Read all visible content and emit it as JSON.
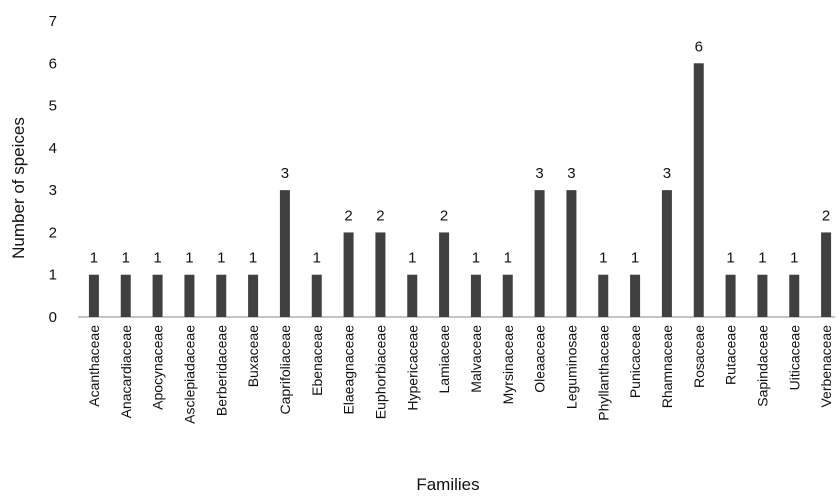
{
  "chart_data": {
    "type": "bar",
    "title": "",
    "xlabel": "Families",
    "ylabel": "Number of speices",
    "ylim": [
      0,
      7
    ],
    "yticks": [
      0,
      1,
      2,
      3,
      4,
      5,
      6,
      7
    ],
    "grid": false,
    "bar_color": "#404040",
    "categories": [
      "Acanthaceae",
      "Anacardiaceae",
      "Apocynaceae",
      "Asclepiadaceae",
      "Berberidaceae",
      "Buxaceae",
      "Caprifoliaceae",
      "Ebenaceae",
      "Elaeagnaceae",
      "Euphorbiaceae",
      "Hypericaceae",
      "Lamiaceae",
      "Malvaceae",
      "Myrsinaceae",
      "Oleaaceae",
      "Leguminosae",
      "Phyllanthaceae",
      "Punicaceae",
      "Rhamnaceae",
      "Rosaceae",
      "Rutaceae",
      "Sapindaceae",
      "Uiticaceae",
      "Verbenaceae"
    ],
    "values": [
      1,
      1,
      1,
      1,
      1,
      1,
      3,
      1,
      2,
      2,
      1,
      2,
      1,
      1,
      3,
      3,
      1,
      1,
      3,
      6,
      1,
      1,
      1,
      2
    ]
  }
}
